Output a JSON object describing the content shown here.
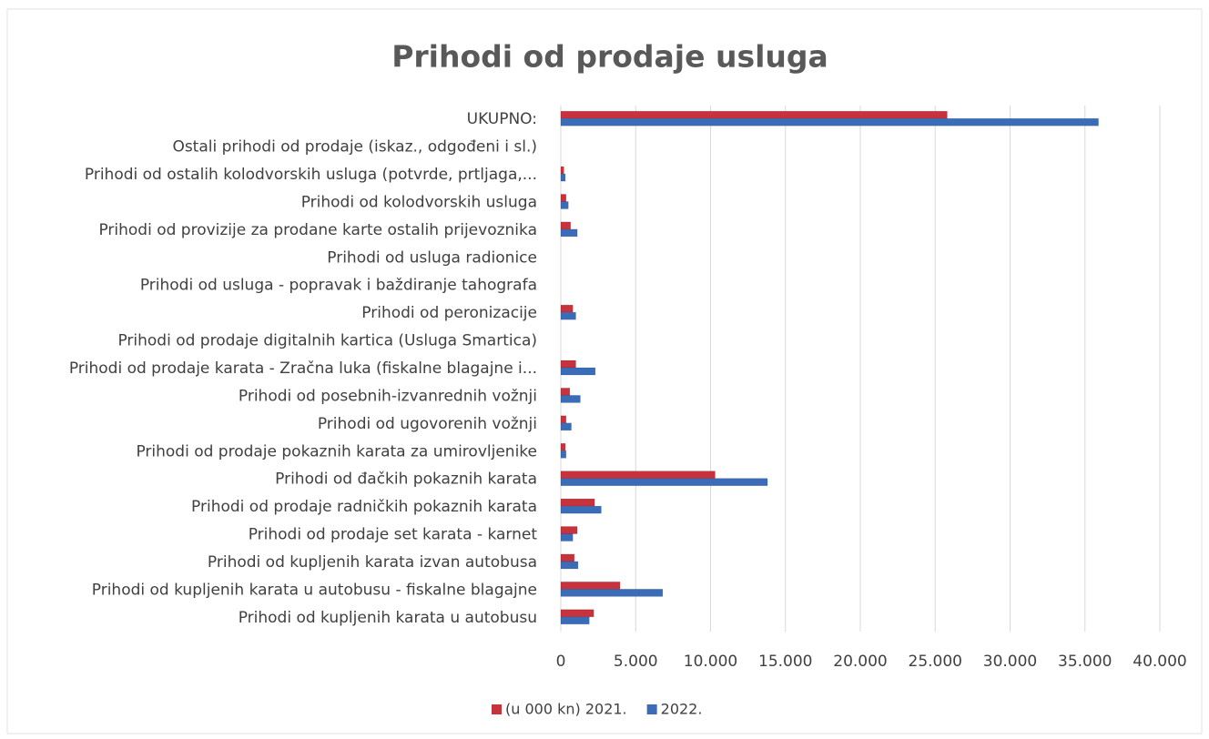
{
  "chart_data": {
    "type": "hbar",
    "title": "Prihodi od prodaje usluga",
    "categories": [
      "UKUPNO:",
      "Ostali prihodi od prodaje (iskaz., odgođeni i sl.)",
      "Prihodi od ostalih kolodvorskih usluga (potvrde, prtljaga,...",
      "Prihodi od kolodvorskih usluga",
      "Prihodi od provizije za prodane karte ostalih prijevoznika",
      "Prihodi od usluga radionice",
      "Prihodi od usluga - popravak i baždiranje tahografa",
      "Prihodi od peronizacije",
      "Prihodi od prodaje digitalnih kartica (Usluga Smartica)",
      "Prihodi od prodaje karata - Zračna luka (fiskalne blagajne i...",
      "Prihodi od posebnih-izvanrednih vožnji",
      "Prihodi od ugovorenih vožnji",
      "Prihodi od prodaje pokaznih karata za umirovljenike",
      "Prihodi od đačkih pokaznih karata",
      "Prihodi od prodaje radničkih pokaznih karata",
      "Prihodi od prodaje set karata - karnet",
      "Prihodi od kupljenih karata izvan autobusa",
      "Prihodi od kupljenih karata u autobusu - fiskalne blagajne",
      "Prihodi od kupljenih karata u autobusu"
    ],
    "series": [
      {
        "name": "(u 000 kn) 2021.",
        "color": "#c8323c",
        "values": [
          25800,
          0,
          200,
          350,
          650,
          0,
          0,
          800,
          0,
          1000,
          600,
          350,
          300,
          10300,
          2250,
          1100,
          900,
          3950,
          2200
        ]
      },
      {
        "name": "2022.",
        "color": "#3b6cb7",
        "values": [
          35900,
          0,
          300,
          500,
          1100,
          0,
          0,
          1000,
          0,
          2300,
          1300,
          700,
          350,
          13800,
          2700,
          800,
          1150,
          6800,
          1900
        ]
      }
    ],
    "xlim": [
      0,
      40000
    ],
    "xticks": [
      0,
      {
        "value": 5000,
        "label": "5.000"
      },
      {
        "value": 10000,
        "label": "10.000"
      },
      {
        "value": 15000,
        "label": "15.000"
      },
      {
        "value": 20000,
        "label": "20.000"
      },
      {
        "value": 25000,
        "label": "25.000"
      },
      {
        "value": 30000,
        "label": "30.000"
      },
      {
        "value": 35000,
        "label": "35.000"
      },
      {
        "value": 40000,
        "label": "40.000"
      }
    ],
    "grid": true,
    "legend": "bottom"
  }
}
